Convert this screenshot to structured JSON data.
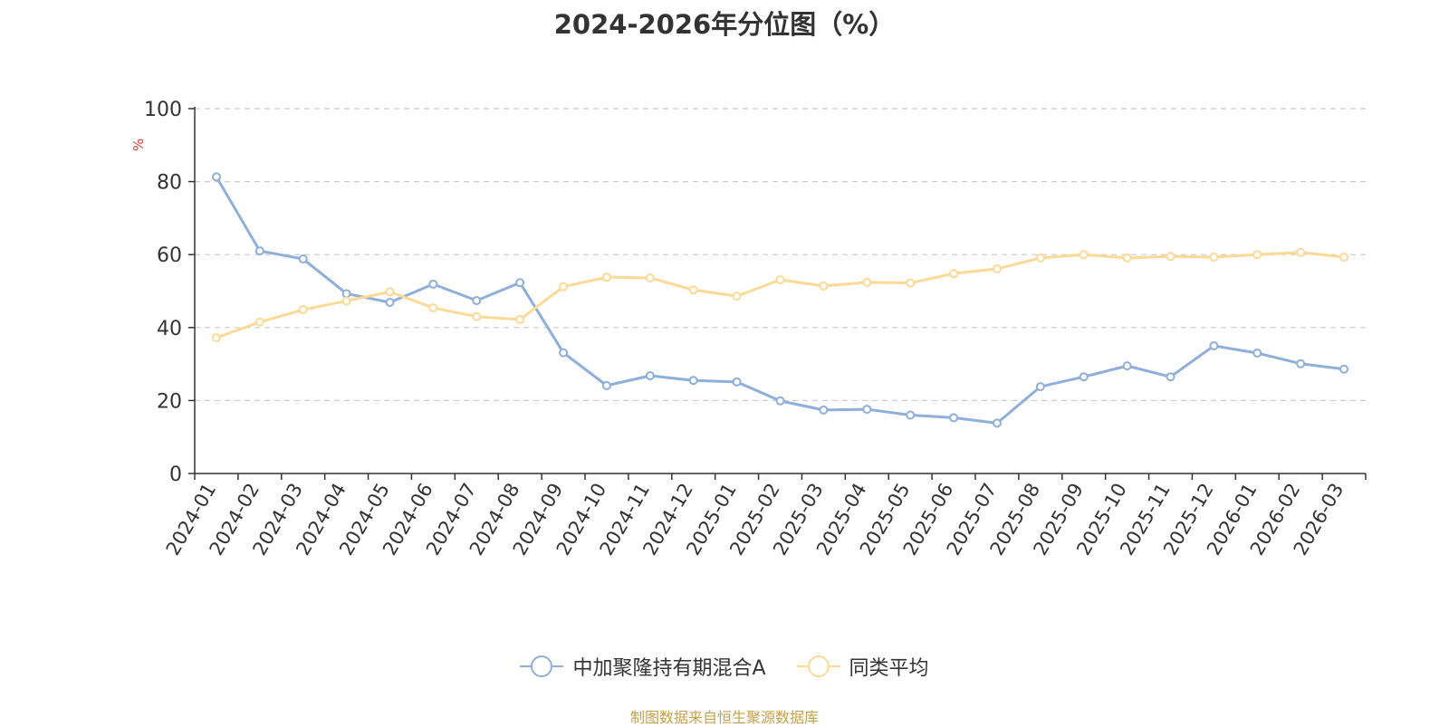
{
  "chart_data": {
    "type": "line",
    "title": "2024-2026年分位图（%）",
    "ylabel": "%",
    "xlabel": "",
    "ylim": [
      0,
      100
    ],
    "yticks": [
      0,
      20,
      40,
      60,
      80,
      100
    ],
    "grid": true,
    "legend_position": "bottom",
    "categories": [
      "2024-01",
      "2024-02",
      "2024-03",
      "2024-04",
      "2024-05",
      "2024-06",
      "2024-07",
      "2024-08",
      "2024-09",
      "2024-10",
      "2024-11",
      "2024-12",
      "2025-01",
      "2025-02",
      "2025-03",
      "2025-04",
      "2025-05",
      "2025-06",
      "2025-07",
      "2025-08",
      "2025-09",
      "2025-10",
      "2025-11",
      "2025-12",
      "2026-01",
      "2026-02",
      "2026-03"
    ],
    "series": [
      {
        "name": "中加聚隆持有期混合A",
        "color": "#8eaedb",
        "values": [
          81.3,
          61.0,
          58.8,
          49.3,
          46.9,
          51.9,
          47.4,
          52.3,
          33.1,
          24.1,
          26.8,
          25.5,
          25.1,
          19.9,
          17.4,
          17.6,
          16.0,
          15.3,
          13.8,
          23.8,
          26.5,
          29.5,
          26.5,
          35.0,
          33.0,
          30.1,
          28.6
        ]
      },
      {
        "name": "同类平均",
        "color": "#fdd996",
        "values": [
          37.2,
          41.5,
          44.9,
          47.3,
          49.8,
          45.4,
          43.0,
          42.2,
          51.2,
          53.8,
          53.6,
          50.3,
          48.6,
          53.1,
          51.4,
          52.4,
          52.2,
          54.8,
          56.1,
          59.1,
          60.0,
          59.1,
          59.5,
          59.3,
          60.0,
          60.6,
          59.3
        ]
      }
    ]
  },
  "source_note": "制图数据来自恒生聚源数据库"
}
